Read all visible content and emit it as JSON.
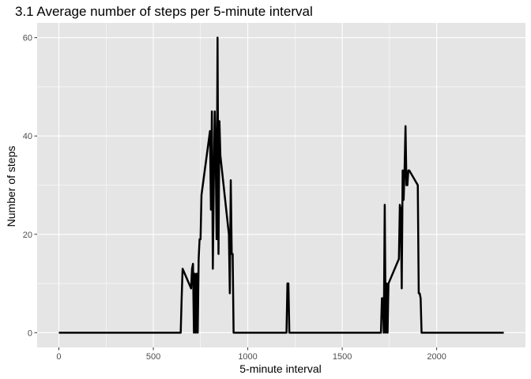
{
  "chart_data": {
    "type": "line",
    "title": "3.1 Average number of steps per 5-minute interval",
    "xlabel": "5-minute interval",
    "ylabel": "Number of steps",
    "xlim": [
      -115,
      2470
    ],
    "ylim": [
      -3,
      63
    ],
    "xticks": [
      0,
      500,
      1000,
      1500,
      2000
    ],
    "xtick_labels": [
      "0",
      "500",
      "1000",
      "1500",
      "2000"
    ],
    "yticks": [
      0,
      20,
      40,
      60
    ],
    "ytick_labels": [
      "0",
      "20",
      "40",
      "60"
    ],
    "grid": true,
    "panel_color": "#e5e5e5",
    "grid_color": "#ffffff",
    "line_color": "#000000",
    "series": [
      {
        "x": [
          0,
          645,
          650,
          655,
          700,
          705,
          710,
          715,
          720,
          725,
          730,
          735,
          740,
          745,
          750,
          755,
          800,
          805,
          810,
          815,
          820,
          825,
          830,
          835,
          840,
          845,
          850,
          855,
          900,
          905,
          910,
          915,
          920,
          925,
          930,
          1205,
          1210,
          1215,
          1220,
          1700,
          1705,
          1710,
          1715,
          1720,
          1725,
          1730,
          1735,
          1740,
          1745,
          1800,
          1805,
          1810,
          1815,
          1820,
          1825,
          1830,
          1835,
          1840,
          1845,
          1850,
          1855,
          1900,
          1905,
          1910,
          1915,
          1920,
          1925,
          2355
        ],
        "y": [
          0,
          0,
          7,
          13,
          9,
          13,
          14,
          0,
          12,
          0,
          12,
          0,
          15,
          19,
          19,
          28,
          41,
          25,
          45,
          13,
          30,
          45,
          37,
          19,
          60,
          16,
          43,
          36,
          20,
          8,
          31,
          16,
          16,
          0,
          0,
          0,
          10,
          10,
          0,
          0,
          0,
          7,
          7,
          0,
          26,
          0,
          10,
          0,
          10,
          15,
          26,
          25,
          9,
          33,
          27,
          33,
          42,
          30,
          30,
          33,
          33,
          30,
          8,
          8,
          7,
          0,
          0,
          0
        ]
      }
    ]
  }
}
